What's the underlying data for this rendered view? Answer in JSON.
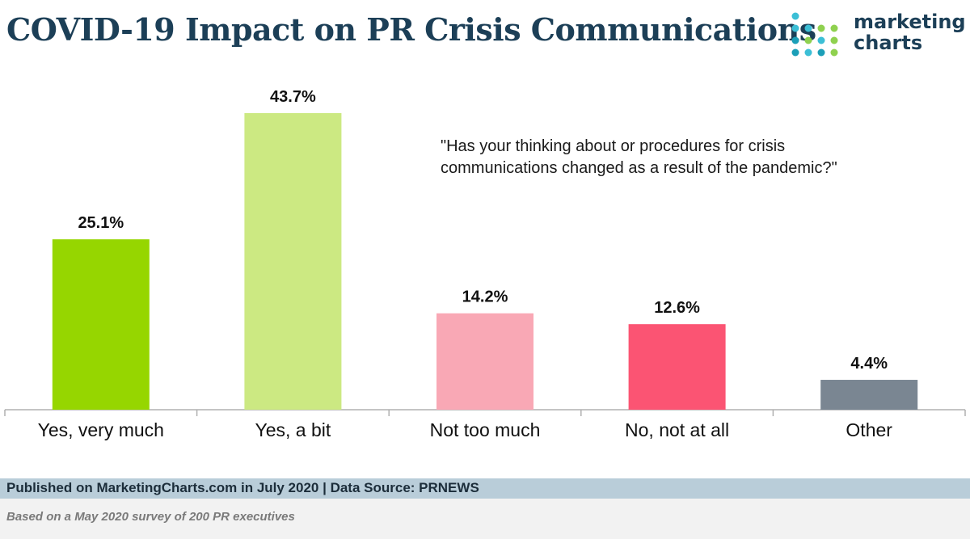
{
  "title": "COVID-19 Impact on PR Crisis Communications",
  "logo": {
    "line1": "marketing",
    "line2": "charts"
  },
  "question": "\"Has your thinking about or procedures for crisis communications changed as a result of the pandemic?\"",
  "footer": {
    "source": "Published on MarketingCharts.com in July 2020 | Data Source: PRNEWS",
    "note": "Based on a May 2020 survey of 200 PR executives"
  },
  "colors": {
    "title": "#1c3f57",
    "axis": "#b0b0b0",
    "footer_bar": "#b9cdd9",
    "logo_dots": [
      "#3cbfd6",
      "#8fd14f",
      "#1c9fb8"
    ]
  },
  "chart_data": {
    "type": "bar",
    "categories": [
      "Yes, very much",
      "Yes, a bit",
      "Not too much",
      "No, not at all",
      "Other"
    ],
    "values": [
      25.1,
      43.7,
      14.2,
      12.6,
      4.4
    ],
    "data_labels": [
      "25.1%",
      "43.7%",
      "14.2%",
      "12.6%",
      "4.4%"
    ],
    "bar_colors": [
      "#96d600",
      "#cce982",
      "#f9a8b5",
      "#fb5473",
      "#7a8692"
    ],
    "ylim": [
      0,
      45
    ],
    "grid": false,
    "legend": "none"
  }
}
